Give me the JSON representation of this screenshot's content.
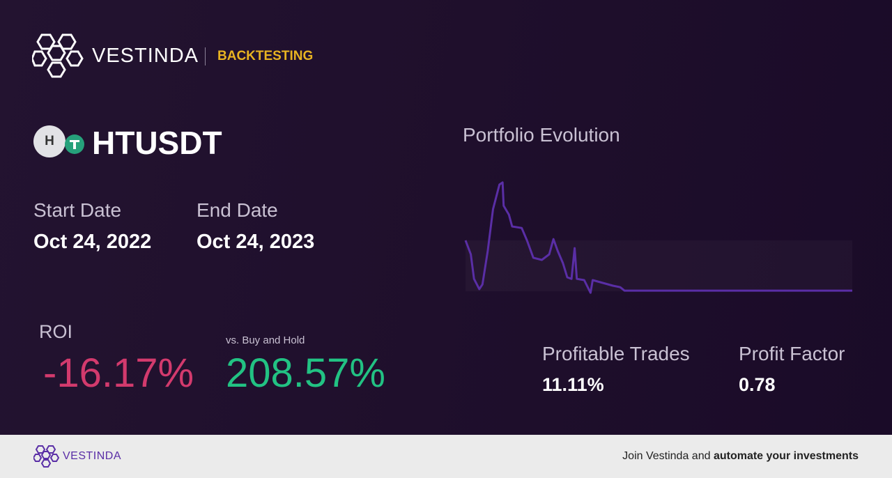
{
  "header": {
    "brand": "VESTINDA",
    "section": "BACKTESTING"
  },
  "asset": {
    "icon_letter": "H",
    "ticker": "HTUSDT"
  },
  "dates": {
    "start_label": "Start Date",
    "start": "Oct 24, 2022",
    "end_label": "End Date",
    "end": "Oct 24, 2023"
  },
  "roi": {
    "label": "ROI",
    "value": "-16.17%",
    "compare_label": "vs. Buy and Hold",
    "compare_value": "208.57%"
  },
  "stats": [
    {
      "label": "Profitable Trades",
      "value": "11.11%"
    },
    {
      "label": "Profit Factor",
      "value": "0.78"
    }
  ],
  "chart_data": {
    "type": "line",
    "title": "Portfolio Evolution",
    "color": "#5a2ea6",
    "x": [
      0,
      5,
      8,
      13,
      16,
      21,
      26,
      32,
      35,
      36,
      41,
      44,
      53,
      58,
      64,
      72,
      79,
      83,
      87,
      92,
      96,
      100,
      103,
      105,
      112,
      118,
      120,
      139,
      146,
      150,
      365
    ],
    "values": [
      100,
      95.5,
      87.6,
      84.3,
      85.8,
      96.6,
      110.1,
      118,
      118.7,
      111.2,
      108.3,
      104.5,
      104,
      100,
      94.4,
      93.7,
      95.5,
      100.4,
      96.6,
      92.6,
      88.1,
      87.6,
      97.5,
      87.6,
      87.2,
      83.1,
      87.2,
      85.4,
      84.9,
      83.8,
      83.8
    ],
    "xlim": [
      0,
      365
    ],
    "ylim": [
      80,
      120
    ]
  },
  "footer": {
    "brand": "VESTINDA",
    "text": "Join Vestinda and ",
    "bold": "automate your investments"
  }
}
